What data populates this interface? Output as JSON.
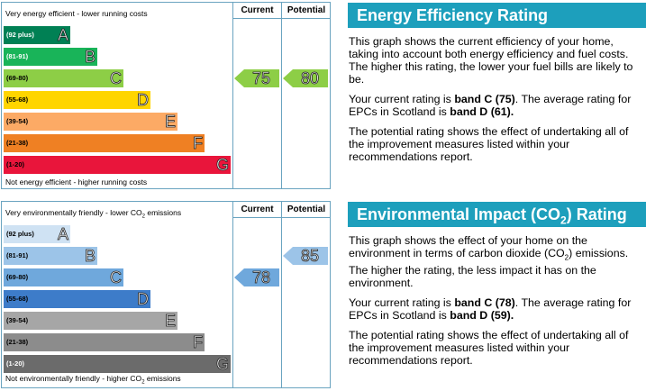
{
  "eer": {
    "top_label": "Very energy efficient - lower running costs",
    "bottom_label": "Not energy efficient - higher running costs",
    "col_current": "Current",
    "col_potential": "Potential",
    "bands": [
      {
        "range": "(92 plus)",
        "letter": "A",
        "color": "#008054",
        "text_color": "#ffffff"
      },
      {
        "range": "(81-91)",
        "letter": "B",
        "color": "#19b459",
        "text_color": "#ffffff"
      },
      {
        "range": "(69-80)",
        "letter": "C",
        "color": "#8dce46",
        "text_color": "#000000"
      },
      {
        "range": "(55-68)",
        "letter": "D",
        "color": "#ffd500",
        "text_color": "#000000"
      },
      {
        "range": "(39-54)",
        "letter": "E",
        "color": "#fcaa65",
        "text_color": "#000000"
      },
      {
        "range": "(21-38)",
        "letter": "F",
        "color": "#ef8023",
        "text_color": "#000000"
      },
      {
        "range": "(1-20)",
        "letter": "G",
        "color": "#e9153b",
        "text_color": "#000000"
      }
    ],
    "current": {
      "value": "75",
      "band": "C",
      "color": "#8dce46"
    },
    "potential": {
      "value": "80",
      "band": "C",
      "color": "#8dce46"
    }
  },
  "ei": {
    "top_label_pre": "Very environmentally friendly - lower CO",
    "top_label_sub": "2",
    "top_label_post": " emissions",
    "bottom_label_pre": "Not environmentally friendly - higher CO",
    "bottom_label_sub": "2",
    "bottom_label_post": " emissions",
    "col_current": "Current",
    "col_potential": "Potential",
    "bands": [
      {
        "range": "(92 plus)",
        "letter": "A",
        "color": "#cfe2f3",
        "text_color": "#000000"
      },
      {
        "range": "(81-91)",
        "letter": "B",
        "color": "#9cc4e8",
        "text_color": "#000000"
      },
      {
        "range": "(69-80)",
        "letter": "C",
        "color": "#6fa8dc",
        "text_color": "#000000"
      },
      {
        "range": "(55-68)",
        "letter": "D",
        "color": "#3d7cc9",
        "text_color": "#000000"
      },
      {
        "range": "(39-54)",
        "letter": "E",
        "color": "#a6a6a6",
        "text_color": "#000000"
      },
      {
        "range": "(21-38)",
        "letter": "F",
        "color": "#8c8c8c",
        "text_color": "#000000"
      },
      {
        "range": "(1-20)",
        "letter": "G",
        "color": "#6b6b6b",
        "text_color": "#ffffff"
      }
    ],
    "current": {
      "value": "78",
      "band": "C",
      "color": "#6fa8dc"
    },
    "potential": {
      "value": "85",
      "band": "B",
      "color": "#9cc4e8"
    }
  },
  "panel1": {
    "title": "Energy Efficiency Rating",
    "p1": "This graph shows the current efficiency of your home, taking into account both energy efficiency and fuel costs. The higher this rating, the lower your fuel bills are likely to be.",
    "p2_a": "Your current rating is ",
    "p2_b": "band C (75)",
    "p2_c": ". The average rating for EPCs in Scotland is ",
    "p2_d": "band D (61).",
    "p3": "The potential rating shows the effect of undertaking all of the improvement measures listed within your recommendations report."
  },
  "panel2": {
    "title_pre": "Environmental Impact (CO",
    "title_sub": "2",
    "title_post": ") Rating",
    "p1_a": "This graph shows the effect of your home on the environment in terms of carbon dioxide (CO",
    "p1_sub": "2",
    "p1_b": ") emissions. The higher the rating, the less impact it has on the environment.",
    "p2_a": "Your current rating is ",
    "p2_b": "band C (78)",
    "p2_c": ". The average rating for EPCs in Scotland is ",
    "p2_d": "band D (59).",
    "p3": "The potential rating shows the effect of undertaking all of the improvement measures listed within your recommendations report."
  }
}
